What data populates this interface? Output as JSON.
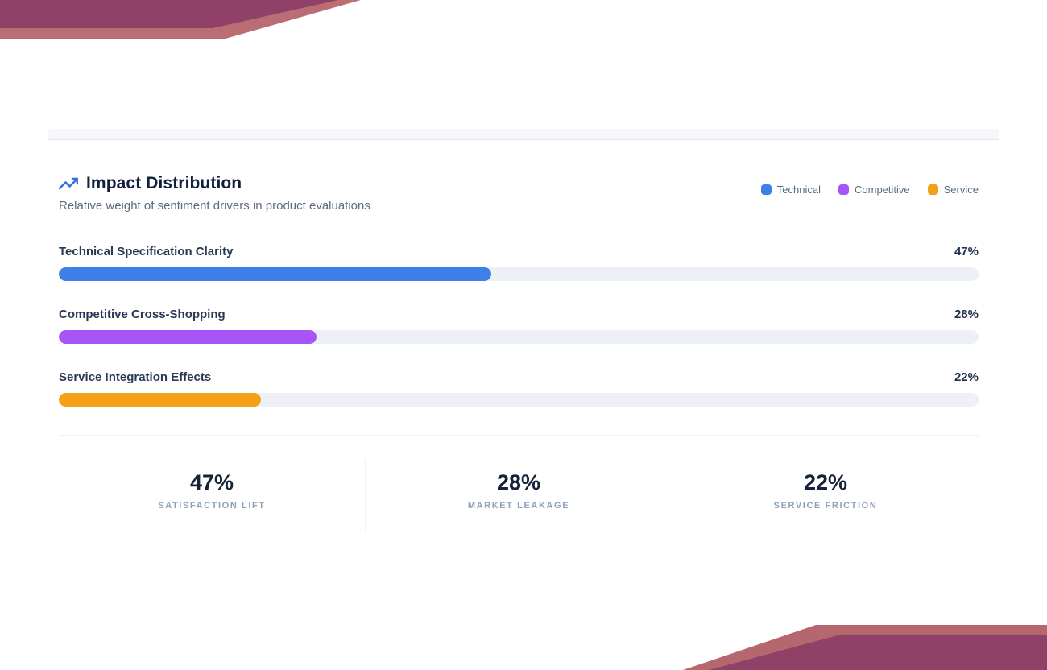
{
  "header": {
    "title": "Impact Distribution",
    "subtitle": "Relative weight of sentiment drivers in product evaluations"
  },
  "legend": [
    {
      "label": "Technical",
      "color": "#3f7fe8"
    },
    {
      "label": "Competitive",
      "color": "#a855f7"
    },
    {
      "label": "Service",
      "color": "#f5a118"
    }
  ],
  "chart_data": {
    "type": "bar",
    "orientation": "horizontal",
    "title": "Impact Distribution",
    "subtitle": "Relative weight of sentiment drivers in product evaluations",
    "categories": [
      "Technical Specification Clarity",
      "Competitive Cross-Shopping",
      "Service Integration Effects"
    ],
    "values": [
      47,
      28,
      22
    ],
    "value_labels": [
      "47%",
      "28%",
      "22%"
    ],
    "colors": [
      "#3f7fe8",
      "#a855f7",
      "#f5a118"
    ],
    "xlim": [
      0,
      100
    ],
    "grid": false,
    "legend_entries": [
      "Technical",
      "Competitive",
      "Service"
    ],
    "legend_position": "top-right"
  },
  "bars": [
    {
      "label": "Technical Specification Clarity",
      "value_label": "47%"
    },
    {
      "label": "Competitive Cross-Shopping",
      "value_label": "28%"
    },
    {
      "label": "Service Integration Effects",
      "value_label": "22%"
    }
  ],
  "stats": [
    {
      "value": "47%",
      "label": "SATISFACTION LIFT"
    },
    {
      "value": "28%",
      "label": "MARKET LEAKAGE"
    },
    {
      "value": "22%",
      "label": "SERVICE FRICTION"
    }
  ],
  "decor": {
    "ribbon_dark": "#8f4168",
    "ribbon_light": "#b96d74",
    "track_color": "#edf1f6"
  }
}
